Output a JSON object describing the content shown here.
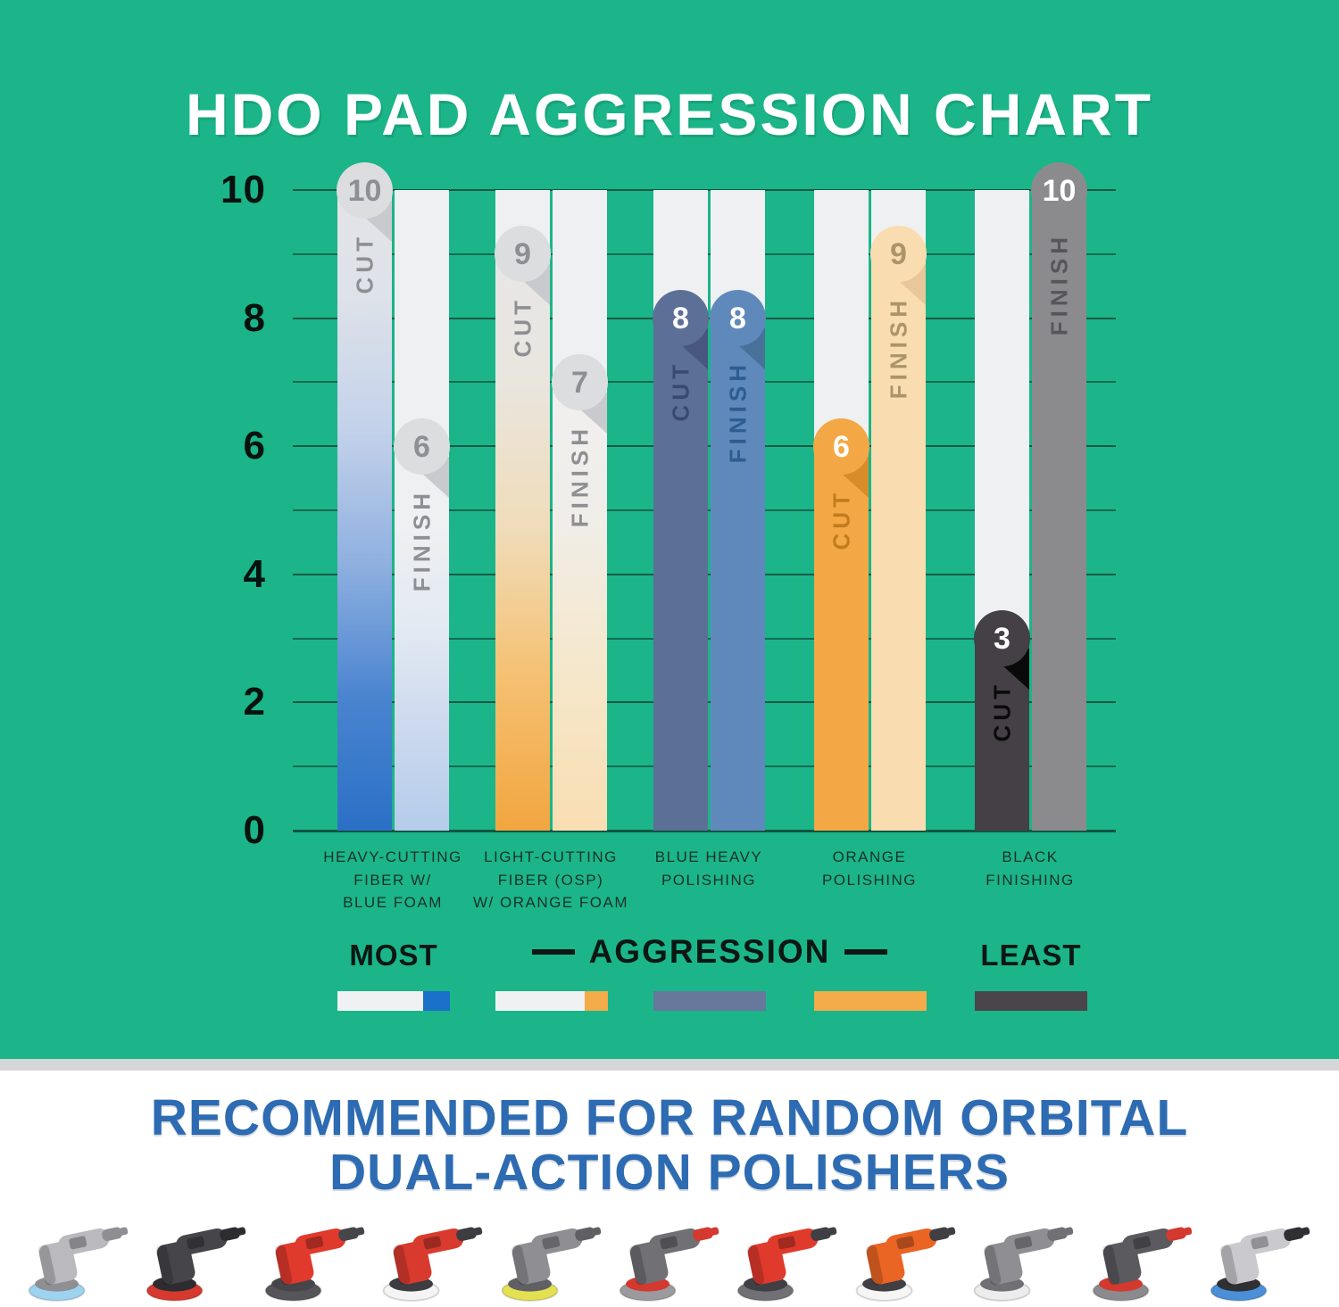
{
  "page": {
    "title": "HDO PAD AGGRESSION CHART"
  },
  "chart_data": {
    "type": "bar",
    "title": "HDO PAD AGGRESSION CHART",
    "categories": [
      "HEAVY-CUTTING FIBER W/ BLUE FOAM",
      "LIGHT-CUTTING FIBER (OSP) W/ ORANGE FOAM",
      "BLUE HEAVY POLISHING",
      "ORANGE POLISHING",
      "BLACK FINISHING"
    ],
    "series": [
      {
        "name": "CUT",
        "values": [
          10,
          9,
          8,
          6,
          3
        ]
      },
      {
        "name": "FINISH",
        "values": [
          6,
          7,
          8,
          9,
          10
        ]
      }
    ],
    "ylim": [
      0,
      10
    ],
    "yticks": [
      10,
      8,
      6,
      4,
      2,
      0
    ],
    "grid": "horizontal line at every integer from 0 to 10",
    "legend_position": "below chart: MOST — AGGRESSION — LEAST"
  },
  "axis": {
    "y_ticks": [
      "10",
      "8",
      "6",
      "4",
      "2",
      "0"
    ],
    "y_tick_values": [
      10,
      8,
      6,
      4,
      2,
      0
    ]
  },
  "bars": [
    {
      "category": 0,
      "col": 0,
      "metric": "CUT",
      "value": 10,
      "badge": "10",
      "kind": "gradient",
      "stops": [
        "#e3e4e7",
        "#dee2e9",
        "#c3d2ea",
        "#8fb0e0",
        "#4a84d0",
        "#2a70c6"
      ],
      "badge_bg": "#dcdddf",
      "badge_color": "#8e8f93",
      "label_color": "#8e8f93",
      "fold": "#c9cacd"
    },
    {
      "category": 0,
      "col": 1,
      "metric": "FINISH",
      "value": 6,
      "badge": "6",
      "kind": "gradient",
      "stops": [
        "#f0f1f2",
        "#eff0f2",
        "#e3eaf2",
        "#ccd9ee",
        "#b4cceb"
      ],
      "badge_bg": "#dcdddf",
      "badge_color": "#8e8f93",
      "label_color": "#8e8f93",
      "fold": "#c9cacd"
    },
    {
      "category": 1,
      "col": 0,
      "metric": "CUT",
      "value": 9,
      "badge": "9",
      "kind": "gradient",
      "stops": [
        "#e7e7e8",
        "#e9e6df",
        "#f0dcba",
        "#f5c071",
        "#f2a640"
      ],
      "badge_bg": "#dcdddf",
      "badge_color": "#8e8f93",
      "label_color": "#8e8f93",
      "fold": "#c9cacd"
    },
    {
      "category": 1,
      "col": 1,
      "metric": "FINISH",
      "value": 7,
      "badge": "7",
      "kind": "gradient",
      "stops": [
        "#f0f0f1",
        "#f0eee9",
        "#f5e7cb",
        "#f9deb2"
      ],
      "badge_bg": "#dcdddf",
      "badge_color": "#8e8f93",
      "label_color": "#8e8f93",
      "fold": "#c9cacd"
    },
    {
      "category": 2,
      "col": 0,
      "metric": "CUT",
      "value": 8,
      "badge": "8",
      "kind": "solid",
      "fill": "#5c6f97",
      "badge_bg": "#5c6f97",
      "badge_color": "#ffffff",
      "label_color": "#39496f",
      "fold": "#47577d"
    },
    {
      "category": 2,
      "col": 1,
      "metric": "FINISH",
      "value": 8,
      "badge": "8",
      "kind": "solid",
      "fill": "#5f89bb",
      "badge_bg": "#5f89bb",
      "badge_color": "#ffffff",
      "label_color": "#2d5c91",
      "fold": "#497099"
    },
    {
      "category": 3,
      "col": 0,
      "metric": "CUT",
      "value": 6,
      "badge": "6",
      "kind": "solid",
      "fill": "#f3a845",
      "badge_bg": "#f3a845",
      "badge_color": "#ffffff",
      "label_color": "#c07c1f",
      "fold": "#d88d2a"
    },
    {
      "category": 3,
      "col": 1,
      "metric": "FINISH",
      "value": 9,
      "badge": "9",
      "kind": "solid",
      "fill": "#f9ddb0",
      "badge_bg": "#f9ddb0",
      "badge_color": "#ab946b",
      "label_color": "#ab946b",
      "fold": "#e8c79a"
    },
    {
      "category": 4,
      "col": 0,
      "metric": "CUT",
      "value": 3,
      "badge": "3",
      "kind": "solid",
      "fill": "#454045",
      "badge_bg": "#454045",
      "badge_color": "#ffffff",
      "label_color": "#0a0a0a",
      "fold": "#0a0a0a"
    },
    {
      "category": 4,
      "col": 1,
      "metric": "FINISH",
      "value": 10,
      "badge": "10",
      "kind": "solid",
      "fill": "#8b8b8e",
      "badge_bg": "#8b8b8e",
      "badge_color": "#ffffff",
      "label_color": "#56565a",
      "fold": null
    }
  ],
  "category_lines": [
    [
      "HEAVY-CUTTING",
      "FIBER W/",
      "BLUE FOAM"
    ],
    [
      "LIGHT-CUTTING",
      "FIBER (OSP)",
      "W/ ORANGE FOAM"
    ],
    [
      "BLUE HEAVY",
      "POLISHING"
    ],
    [
      "ORANGE",
      "POLISHING"
    ],
    [
      "BLACK",
      "FINISHING"
    ]
  ],
  "legend": {
    "most": "MOST",
    "center": "AGGRESSION",
    "least": "LEAST",
    "swatches": [
      {
        "base": "#f0f1f2",
        "accent": "#1a70c8",
        "accent_w": 30
      },
      {
        "base": "#f0f1f2",
        "accent": "#f3ac49",
        "accent_w": 26
      },
      {
        "base": "#68779c"
      },
      {
        "base": "#f3ac49"
      },
      {
        "base": "#4a454a"
      }
    ]
  },
  "footer": {
    "heading_line1": "RECOMMENDED FOR RANDOM ORBITAL",
    "heading_line2": "DUAL-ACTION POLISHERS",
    "polishers": [
      {
        "body": "#b9b9be",
        "dark": "#8e8e93",
        "pad": "#9ed3f0"
      },
      {
        "body": "#45454a",
        "dark": "#2c2c31",
        "pad": "#d6392e"
      },
      {
        "body": "#e03a2c",
        "dark": "#45454a",
        "pad": "#55555a"
      },
      {
        "body": "#d93a2e",
        "dark": "#3c3c41",
        "pad": "#f4f4f4"
      },
      {
        "body": "#8e8e93",
        "dark": "#5f5f64",
        "pad": "#e3e052"
      },
      {
        "body": "#707075",
        "dark": "#d3392e",
        "pad": "#9a9a9f"
      },
      {
        "body": "#e03a2c",
        "dark": "#3f3f44",
        "pad": "#707075"
      },
      {
        "body": "#ea6424",
        "dark": "#3f3f44",
        "pad": "#f5f5f5"
      },
      {
        "body": "#8e8e93",
        "dark": "#707075",
        "pad": "#ececec"
      },
      {
        "body": "#5a5a5f",
        "dark": "#d3392e",
        "pad": "#8a8a8f"
      },
      {
        "body": "#c9c9ce",
        "dark": "#2f2f34",
        "pad": "#4b8fd6"
      }
    ]
  },
  "colors": {
    "background": "#1bb589",
    "grid": "#0d4a3a",
    "bar_track": "#eff0f1",
    "divider": "#d5d6d8",
    "footer_heading": "#2d6bb2"
  }
}
